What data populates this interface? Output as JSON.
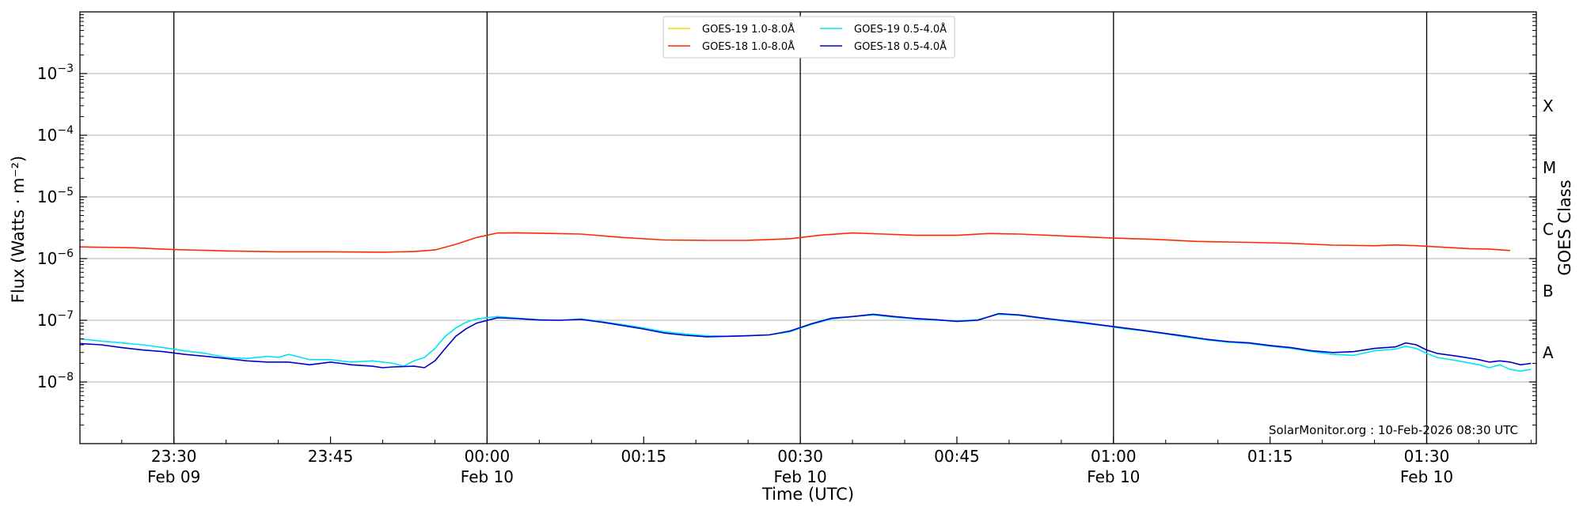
{
  "chart_data": {
    "type": "line",
    "xlabel": "Time (UTC)",
    "ylabel": "Flux (Watts · m⁻²)",
    "right_axis_label": "GOES Class",
    "credit": "SolarMonitor.org : 10-Feb-2026 08:30 UTC",
    "y_scale": "log",
    "ylim": [
      1e-09,
      0.01
    ],
    "xlim": [
      "Feb 09 23:21",
      "Feb 10 01:38"
    ],
    "grid": "horizontal at decades, vertical at half-hours",
    "legend_position": "top-center",
    "y_ticks": [
      {
        "value": 1e-08,
        "base": "10",
        "exp": "−8"
      },
      {
        "value": 1e-07,
        "base": "10",
        "exp": "−7"
      },
      {
        "value": 1e-06,
        "base": "10",
        "exp": "−6"
      },
      {
        "value": 1e-05,
        "base": "10",
        "exp": "−5"
      },
      {
        "value": 0.0001,
        "base": "10",
        "exp": "−4"
      },
      {
        "value": 0.001,
        "base": "10",
        "exp": "−3"
      }
    ],
    "x_ticks": [
      {
        "minute": 9,
        "time": "23:30",
        "date": "Feb 09",
        "vline": true
      },
      {
        "minute": 24,
        "time": "23:45",
        "date": "",
        "vline": false
      },
      {
        "minute": 39,
        "time": "00:00",
        "date": "Feb 10",
        "vline": true
      },
      {
        "minute": 54,
        "time": "00:15",
        "date": "",
        "vline": false
      },
      {
        "minute": 69,
        "time": "00:30",
        "date": "Feb 10",
        "vline": true
      },
      {
        "minute": 84,
        "time": "00:45",
        "date": "",
        "vline": false
      },
      {
        "minute": 99,
        "time": "01:00",
        "date": "Feb 10",
        "vline": true
      },
      {
        "minute": 114,
        "time": "01:15",
        "date": "",
        "vline": false
      },
      {
        "minute": 129,
        "time": "01:30",
        "date": "Feb 10",
        "vline": true
      }
    ],
    "class_labels": [
      {
        "label": "X",
        "value": 0.0003
      },
      {
        "label": "M",
        "value": 3e-05
      },
      {
        "label": "C",
        "value": 3e-06
      },
      {
        "label": "B",
        "value": 3e-07
      },
      {
        "label": "A",
        "value": 3e-08
      }
    ],
    "x_unit_note": "x values are minutes after Feb 09 23:21 UTC",
    "series": [
      {
        "name": "GOES-19 1.0-8.0Å",
        "color": "#ffd700",
        "draw": false,
        "points": []
      },
      {
        "name": "GOES-18 1.0-8.0Å",
        "color": "#ff2a00",
        "draw": true,
        "points": [
          [
            0,
            1.55e-06
          ],
          [
            5,
            1.5e-06
          ],
          [
            9,
            1.4e-06
          ],
          [
            14,
            1.33e-06
          ],
          [
            19,
            1.29e-06
          ],
          [
            24,
            1.29e-06
          ],
          [
            29,
            1.27e-06
          ],
          [
            32,
            1.3e-06
          ],
          [
            34,
            1.38e-06
          ],
          [
            36,
            1.7e-06
          ],
          [
            38,
            2.2e-06
          ],
          [
            40,
            2.6e-06
          ],
          [
            42,
            2.62e-06
          ],
          [
            45,
            2.56e-06
          ],
          [
            48,
            2.5e-06
          ],
          [
            52,
            2.2e-06
          ],
          [
            56,
            2e-06
          ],
          [
            60,
            1.97e-06
          ],
          [
            64,
            1.98e-06
          ],
          [
            68,
            2.1e-06
          ],
          [
            71,
            2.4e-06
          ],
          [
            74,
            2.6e-06
          ],
          [
            77,
            2.5e-06
          ],
          [
            80,
            2.38e-06
          ],
          [
            84,
            2.38e-06
          ],
          [
            87,
            2.55e-06
          ],
          [
            90,
            2.5e-06
          ],
          [
            95,
            2.3e-06
          ],
          [
            99,
            2.15e-06
          ],
          [
            103,
            2.05e-06
          ],
          [
            107,
            1.9e-06
          ],
          [
            112,
            1.83e-06
          ],
          [
            116,
            1.77e-06
          ],
          [
            120,
            1.65e-06
          ],
          [
            124,
            1.62e-06
          ],
          [
            126,
            1.66e-06
          ],
          [
            128,
            1.62e-06
          ],
          [
            130,
            1.55e-06
          ],
          [
            133,
            1.45e-06
          ],
          [
            135,
            1.43e-06
          ],
          [
            137,
            1.35e-06
          ]
        ]
      },
      {
        "name": "GOES-19 0.5-4.0Å",
        "color": "#00e5ee",
        "draw": true,
        "points": [
          [
            0,
            5e-08
          ],
          [
            2,
            4.6e-08
          ],
          [
            4,
            4.3e-08
          ],
          [
            6,
            4e-08
          ],
          [
            8,
            3.6e-08
          ],
          [
            10,
            3.2e-08
          ],
          [
            12,
            2.9e-08
          ],
          [
            14,
            2.5e-08
          ],
          [
            16,
            2.4e-08
          ],
          [
            18,
            2.6e-08
          ],
          [
            19,
            2.5e-08
          ],
          [
            20,
            2.8e-08
          ],
          [
            22,
            2.3e-08
          ],
          [
            24,
            2.3e-08
          ],
          [
            26,
            2.1e-08
          ],
          [
            28,
            2.2e-08
          ],
          [
            30,
            2e-08
          ],
          [
            31,
            1.8e-08
          ],
          [
            32,
            2.2e-08
          ],
          [
            33,
            2.5e-08
          ],
          [
            34,
            3.5e-08
          ],
          [
            35,
            5.5e-08
          ],
          [
            36,
            7.5e-08
          ],
          [
            37,
            9.3e-08
          ],
          [
            38,
            1.05e-07
          ],
          [
            40,
            1.15e-07
          ],
          [
            42,
            1.08e-07
          ],
          [
            44,
            1.02e-07
          ],
          [
            46,
            1e-07
          ],
          [
            48,
            1.05e-07
          ],
          [
            50,
            9.5e-08
          ],
          [
            52,
            8.5e-08
          ],
          [
            54,
            7.5e-08
          ],
          [
            56,
            6.5e-08
          ],
          [
            58,
            6e-08
          ],
          [
            60,
            5.6e-08
          ],
          [
            62,
            5.5e-08
          ],
          [
            64,
            5.6e-08
          ],
          [
            66,
            5.8e-08
          ],
          [
            68,
            6.5e-08
          ],
          [
            70,
            8.5e-08
          ],
          [
            72,
            1.05e-07
          ],
          [
            74,
            1.15e-07
          ],
          [
            76,
            1.22e-07
          ],
          [
            78,
            1.12e-07
          ],
          [
            80,
            1.05e-07
          ],
          [
            82,
            1e-07
          ],
          [
            84,
            9.8e-08
          ],
          [
            86,
            1.02e-07
          ],
          [
            88,
            1.25e-07
          ],
          [
            90,
            1.2e-07
          ],
          [
            92,
            1.08e-07
          ],
          [
            94,
            9.8e-08
          ],
          [
            96,
            9e-08
          ],
          [
            98,
            8.2e-08
          ],
          [
            100,
            7.3e-08
          ],
          [
            102,
            6.7e-08
          ],
          [
            104,
            6e-08
          ],
          [
            106,
            5.3e-08
          ],
          [
            108,
            4.8e-08
          ],
          [
            110,
            4.4e-08
          ],
          [
            112,
            4.2e-08
          ],
          [
            114,
            3.8e-08
          ],
          [
            116,
            3.5e-08
          ],
          [
            118,
            3.1e-08
          ],
          [
            120,
            2.8e-08
          ],
          [
            122,
            2.7e-08
          ],
          [
            124,
            3.2e-08
          ],
          [
            126,
            3.4e-08
          ],
          [
            127,
            3.8e-08
          ],
          [
            128,
            3.5e-08
          ],
          [
            129,
            2.9e-08
          ],
          [
            130,
            2.5e-08
          ],
          [
            132,
            2.2e-08
          ],
          [
            134,
            1.9e-08
          ],
          [
            135,
            1.7e-08
          ],
          [
            136,
            1.9e-08
          ],
          [
            137,
            1.6e-08
          ],
          [
            138,
            1.5e-08
          ],
          [
            139,
            1.6e-08
          ]
        ]
      },
      {
        "name": "GOES-18 0.5-4.0Å",
        "color": "#0000cd",
        "draw": true,
        "points": [
          [
            0,
            4.2e-08
          ],
          [
            2,
            4e-08
          ],
          [
            4,
            3.6e-08
          ],
          [
            6,
            3.3e-08
          ],
          [
            8,
            3.1e-08
          ],
          [
            10,
            2.8e-08
          ],
          [
            12,
            2.6e-08
          ],
          [
            14,
            2.4e-08
          ],
          [
            16,
            2.2e-08
          ],
          [
            18,
            2.1e-08
          ],
          [
            20,
            2.1e-08
          ],
          [
            22,
            1.9e-08
          ],
          [
            24,
            2.1e-08
          ],
          [
            25,
            2e-08
          ],
          [
            26,
            1.9e-08
          ],
          [
            28,
            1.8e-08
          ],
          [
            29,
            1.7e-08
          ],
          [
            30,
            1.75e-08
          ],
          [
            32,
            1.8e-08
          ],
          [
            33,
            1.7e-08
          ],
          [
            34,
            2.2e-08
          ],
          [
            35,
            3.5e-08
          ],
          [
            36,
            5.5e-08
          ],
          [
            37,
            7.3e-08
          ],
          [
            38,
            9e-08
          ],
          [
            40,
            1.1e-07
          ],
          [
            42,
            1.06e-07
          ],
          [
            44,
            1.01e-07
          ],
          [
            46,
            1e-07
          ],
          [
            48,
            1.03e-07
          ],
          [
            50,
            9.3e-08
          ],
          [
            52,
            8.2e-08
          ],
          [
            54,
            7.2e-08
          ],
          [
            56,
            6.2e-08
          ],
          [
            58,
            5.7e-08
          ],
          [
            60,
            5.4e-08
          ],
          [
            62,
            5.5e-08
          ],
          [
            64,
            5.6e-08
          ],
          [
            66,
            5.8e-08
          ],
          [
            68,
            6.7e-08
          ],
          [
            70,
            8.7e-08
          ],
          [
            72,
            1.08e-07
          ],
          [
            74,
            1.15e-07
          ],
          [
            76,
            1.25e-07
          ],
          [
            78,
            1.15e-07
          ],
          [
            80,
            1.07e-07
          ],
          [
            82,
            1.02e-07
          ],
          [
            84,
            9.6e-08
          ],
          [
            86,
            1e-07
          ],
          [
            88,
            1.28e-07
          ],
          [
            90,
            1.22e-07
          ],
          [
            92,
            1.1e-07
          ],
          [
            94,
            1e-07
          ],
          [
            96,
            9.2e-08
          ],
          [
            98,
            8.3e-08
          ],
          [
            100,
            7.5e-08
          ],
          [
            102,
            6.8e-08
          ],
          [
            104,
            6.1e-08
          ],
          [
            106,
            5.5e-08
          ],
          [
            108,
            4.9e-08
          ],
          [
            110,
            4.5e-08
          ],
          [
            112,
            4.3e-08
          ],
          [
            114,
            3.9e-08
          ],
          [
            116,
            3.6e-08
          ],
          [
            118,
            3.2e-08
          ],
          [
            120,
            3e-08
          ],
          [
            122,
            3.1e-08
          ],
          [
            124,
            3.5e-08
          ],
          [
            126,
            3.7e-08
          ],
          [
            127,
            4.3e-08
          ],
          [
            128,
            4e-08
          ],
          [
            129,
            3.3e-08
          ],
          [
            130,
            2.9e-08
          ],
          [
            132,
            2.6e-08
          ],
          [
            134,
            2.3e-08
          ],
          [
            135,
            2.1e-08
          ],
          [
            136,
            2.2e-08
          ],
          [
            137,
            2.1e-08
          ],
          [
            138,
            1.9e-08
          ],
          [
            139,
            2e-08
          ]
        ]
      }
    ]
  }
}
